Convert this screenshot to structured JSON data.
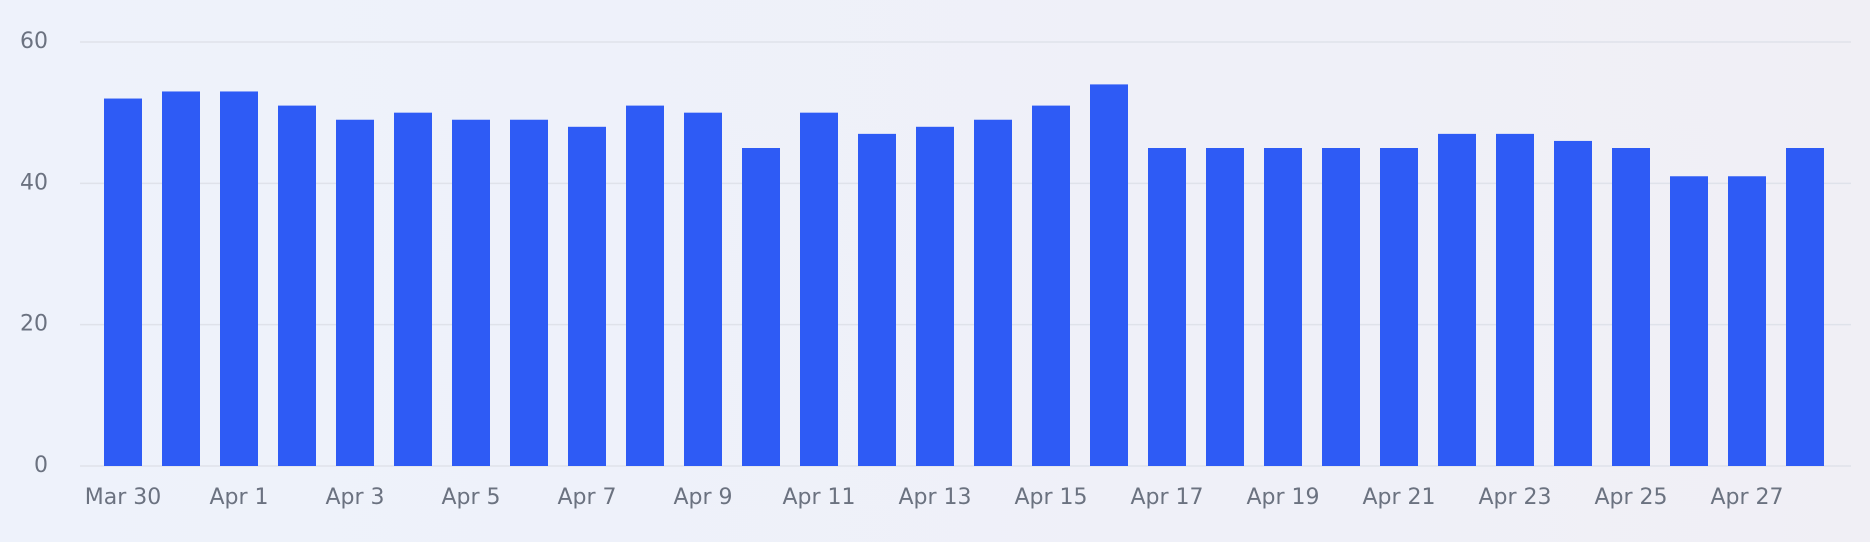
{
  "chart_data": {
    "type": "bar",
    "categories": [
      "Mar 30",
      null,
      "Apr 1",
      null,
      "Apr 3",
      null,
      "Apr 5",
      null,
      "Apr 7",
      null,
      "Apr 9",
      null,
      "Apr 11",
      null,
      "Apr 13",
      null,
      "Apr 15",
      null,
      "Apr 17",
      null,
      "Apr 19",
      null,
      "Apr 21",
      null,
      "Apr 23",
      null,
      "Apr 25",
      null,
      "Apr 27",
      null
    ],
    "values": [
      52,
      53,
      53,
      51,
      49,
      50,
      49,
      49,
      48,
      51,
      50,
      45,
      50,
      47,
      48,
      49,
      51,
      54,
      45,
      45,
      45,
      45,
      45,
      47,
      47,
      46,
      45,
      41,
      41,
      45
    ],
    "color": "#2e5bf5",
    "ylim": [
      0,
      60
    ],
    "yticks": [
      0,
      20,
      40,
      60
    ],
    "grid": true
  }
}
